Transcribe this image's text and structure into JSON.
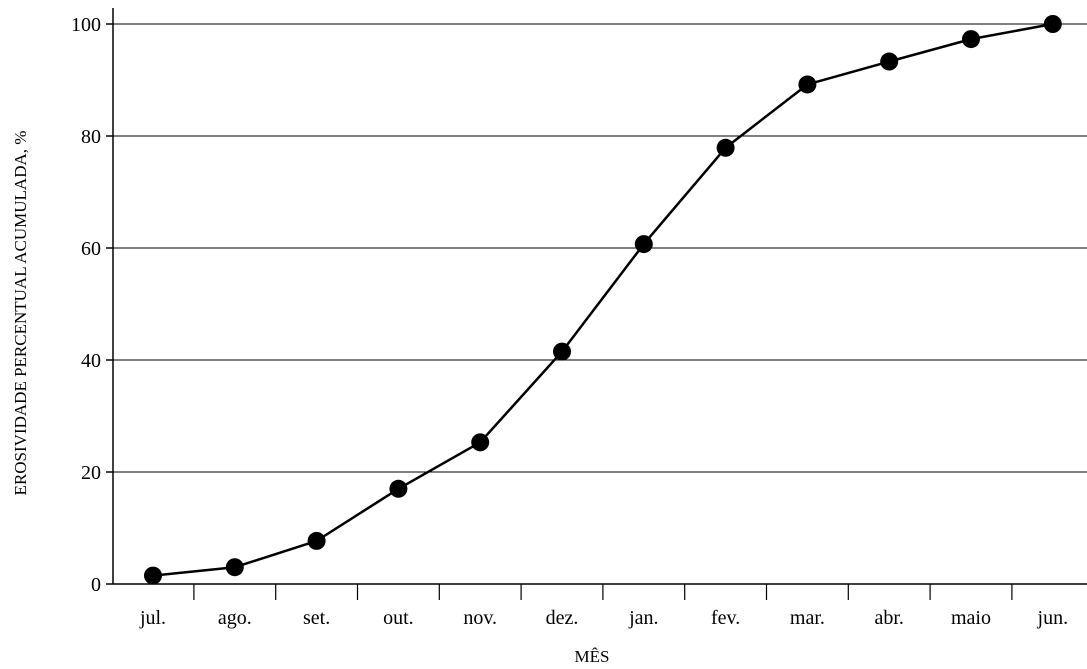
{
  "chart_data": {
    "type": "line",
    "title": "",
    "xlabel": "MÊS",
    "ylabel": "EROSIVIDADE PERCENTUAL ACUMULADA, %",
    "categories": [
      "jul.",
      "ago.",
      "set.",
      "out.",
      "nov.",
      "dez.",
      "jan.",
      "fev.",
      "mar.",
      "abr.",
      "maio",
      "jun."
    ],
    "series": [
      {
        "values": [
          1.5,
          3.0,
          7.7,
          17.0,
          25.3,
          41.5,
          60.7,
          77.9,
          89.2,
          93.3,
          97.3,
          100.0
        ]
      }
    ],
    "ylim": [
      0,
      100
    ],
    "yticks": [
      0,
      20,
      40,
      60,
      80,
      100
    ],
    "grid": "horizontal",
    "legend": "none",
    "colors": {
      "line": "#000000",
      "marker": "#000000",
      "grid": "#000000"
    }
  }
}
